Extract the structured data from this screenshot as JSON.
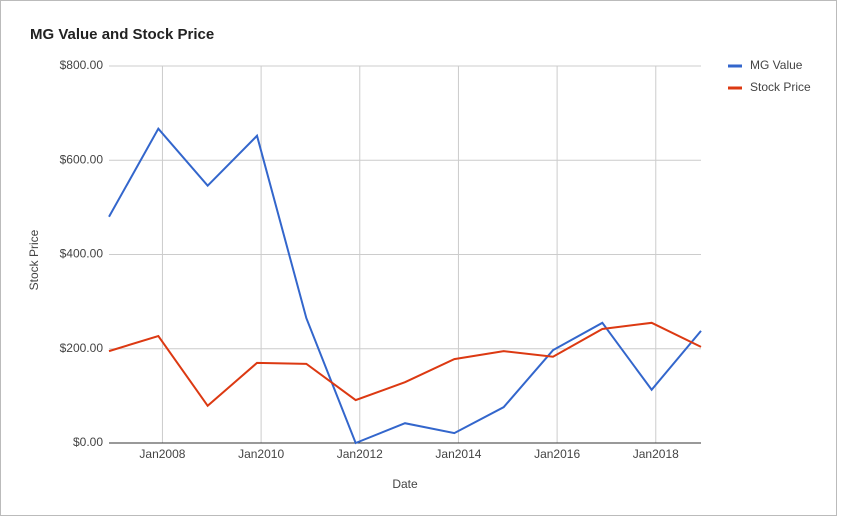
{
  "chart_data": {
    "type": "line",
    "title": "MG Value and Stock Price",
    "x_label": "Date",
    "y_label": "Stock Price",
    "x": [
      "2006-12",
      "2007-12",
      "2008-12",
      "2009-12",
      "2010-12",
      "2011-12",
      "2012-12",
      "2013-12",
      "2014-12",
      "2015-12",
      "2016-12",
      "2017-12",
      "2018-12"
    ],
    "series": [
      {
        "name": "MG Value",
        "color": "#3366cc",
        "values": [
          480,
          667,
          546,
          652,
          265,
          0,
          42,
          21,
          76,
          197,
          255,
          113,
          238
        ]
      },
      {
        "name": "Stock Price",
        "color": "#dc3912",
        "values": [
          195,
          227,
          79,
          170,
          168,
          91,
          129,
          178,
          195,
          183,
          242,
          255,
          204
        ]
      }
    ],
    "xlim": [
      "2006-12",
      "2018-12"
    ],
    "xticks": [
      {
        "value": "2008-01",
        "label": "Jan2008"
      },
      {
        "value": "2010-01",
        "label": "Jan2010"
      },
      {
        "value": "2012-01",
        "label": "Jan2012"
      },
      {
        "value": "2014-01",
        "label": "Jan2014"
      },
      {
        "value": "2016-01",
        "label": "Jan2016"
      },
      {
        "value": "2018-01",
        "label": "Jan2018"
      }
    ],
    "ylim": [
      0,
      800
    ],
    "yticks": [
      {
        "value": 0,
        "label": "$0.00"
      },
      {
        "value": 200,
        "label": "$200.00"
      },
      {
        "value": 400,
        "label": "$400.00"
      },
      {
        "value": 600,
        "label": "$600.00"
      },
      {
        "value": 800,
        "label": "$800.00"
      }
    ],
    "grid": true,
    "legend": "right"
  }
}
